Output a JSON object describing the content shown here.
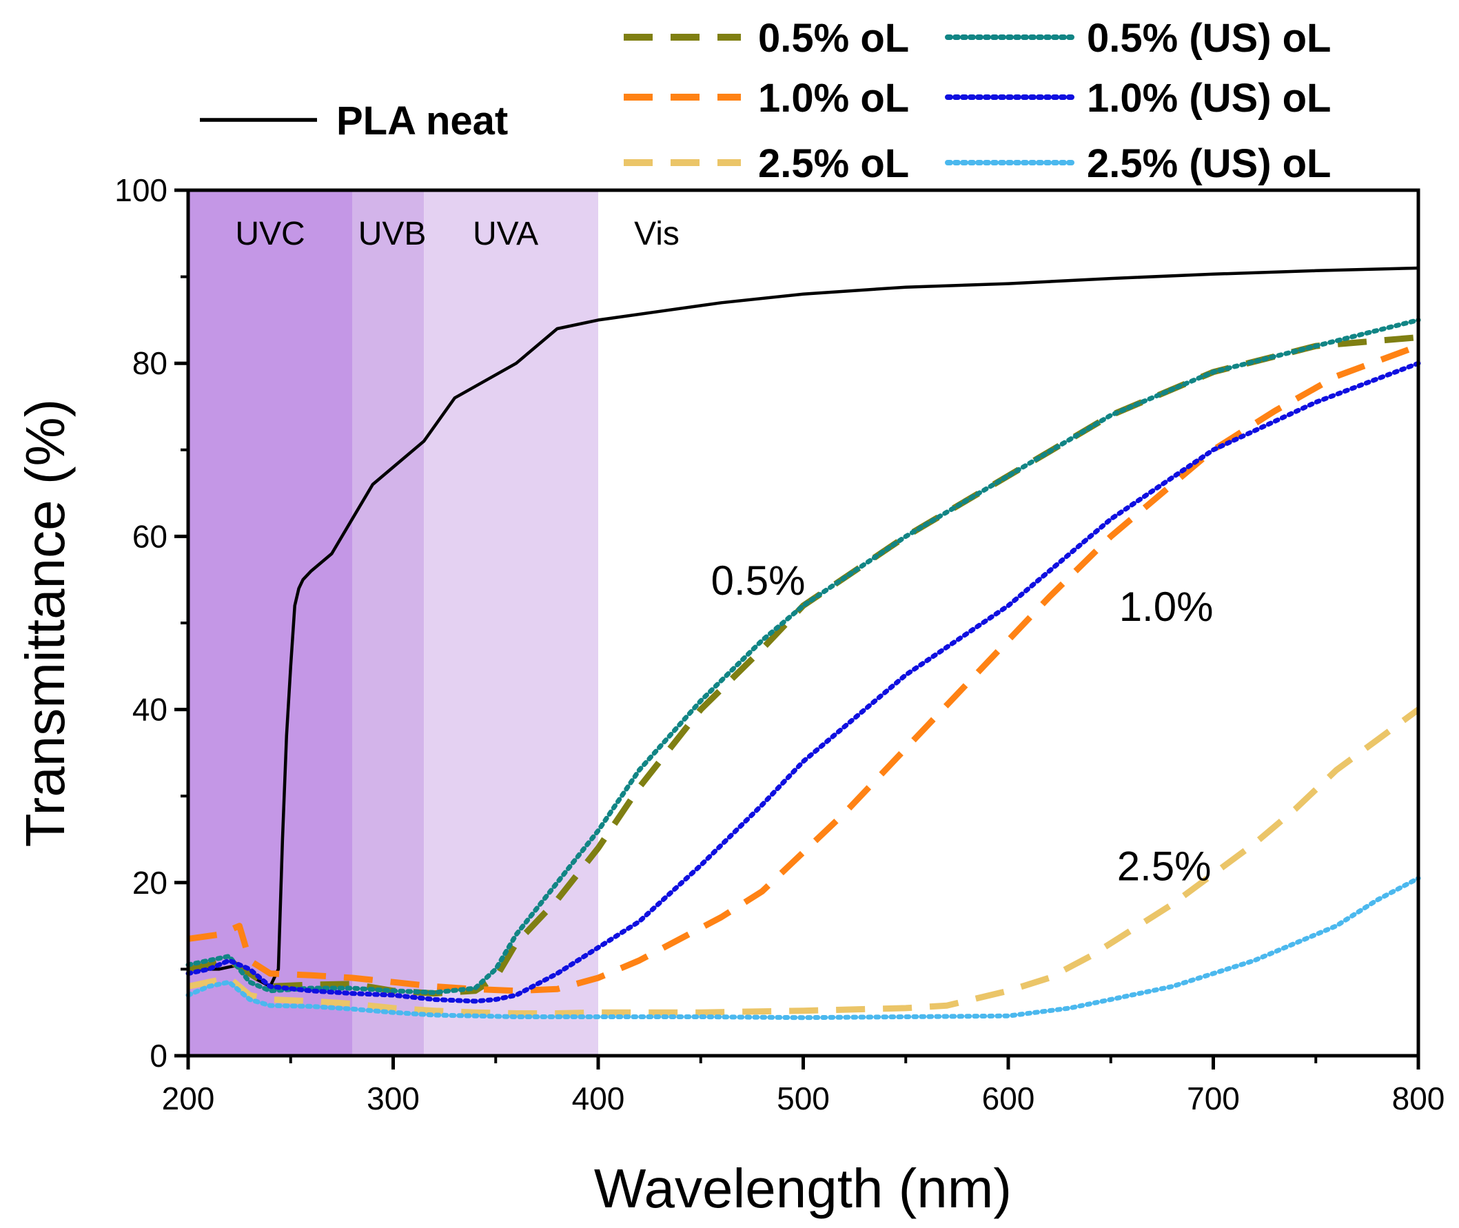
{
  "chart_data": {
    "type": "line",
    "title": "",
    "xlabel": "Wavelength (nm)",
    "ylabel": "Transmittance (%)",
    "xlim": [
      200,
      800
    ],
    "ylim": [
      0,
      100
    ],
    "xticks": [
      200,
      300,
      400,
      500,
      600,
      700,
      800
    ],
    "yticks": [
      0,
      20,
      40,
      60,
      80,
      100
    ],
    "grid": false,
    "legend_position": "top",
    "bands": [
      {
        "label": "UVC",
        "range": [
          200,
          280
        ],
        "color": "#c497e6"
      },
      {
        "label": "UVB",
        "range": [
          280,
          315
        ],
        "color": "#d3b4ea"
      },
      {
        "label": "UVA",
        "range": [
          315,
          400
        ],
        "color": "#e4d1f2"
      },
      {
        "label": "Vis",
        "range": [
          400,
          800
        ],
        "color": "#ffffff"
      }
    ],
    "annotations": [
      {
        "text": "0.5%",
        "x": 478,
        "y": 55
      },
      {
        "text": "1.0%",
        "x": 677,
        "y": 52
      },
      {
        "text": "2.5%",
        "x": 676,
        "y": 22
      }
    ],
    "series": [
      {
        "name": "PLA neat",
        "color": "#000000",
        "style": "solid",
        "x": [
          200,
          215,
          225,
          232,
          240,
          244,
          246,
          248,
          250,
          252,
          254,
          256,
          260,
          270,
          280,
          290,
          300,
          315,
          330,
          345,
          360,
          380,
          400,
          430,
          460,
          500,
          550,
          600,
          650,
          700,
          750,
          800
        ],
        "y": [
          10,
          10,
          10.5,
          9,
          8,
          10,
          25,
          37,
          45,
          52,
          54,
          55,
          56,
          58,
          62,
          66,
          68,
          71,
          76,
          78,
          80,
          84,
          85,
          86,
          87,
          88,
          88.8,
          89.2,
          89.8,
          90.3,
          90.7,
          91
        ]
      },
      {
        "name": "0.5% oL",
        "color": "#7f7f12",
        "style": "dashed",
        "x": [
          200,
          210,
          220,
          230,
          240,
          260,
          280,
          300,
          320,
          340,
          350,
          360,
          380,
          400,
          420,
          450,
          480,
          500,
          550,
          600,
          650,
          700,
          750,
          800
        ],
        "y": [
          10,
          10.5,
          11,
          9.5,
          8,
          8.2,
          8.3,
          7.5,
          7.2,
          7.5,
          9,
          13,
          18,
          24,
          31,
          40,
          47,
          52,
          60,
          67,
          74,
          79,
          82,
          83
        ]
      },
      {
        "name": "1.0% oL",
        "color": "#ff8214",
        "style": "dashed",
        "x": [
          200,
          215,
          225,
          230,
          240,
          260,
          280,
          300,
          320,
          340,
          360,
          380,
          400,
          420,
          440,
          460,
          480,
          500,
          520,
          540,
          560,
          580,
          600,
          620,
          650,
          680,
          700,
          730,
          760,
          800
        ],
        "y": [
          13.5,
          14,
          15,
          11,
          9.5,
          9.3,
          9,
          8.5,
          8,
          7.7,
          7.5,
          7.7,
          9,
          11,
          13.5,
          16,
          19,
          23.5,
          28,
          33,
          38,
          43,
          48,
          53,
          60,
          66,
          70,
          74.5,
          78.5,
          82
        ]
      },
      {
        "name": "2.5% oL",
        "color": "#ebc568",
        "style": "dashed",
        "x": [
          200,
          210,
          220,
          230,
          240,
          260,
          280,
          300,
          320,
          340,
          360,
          380,
          400,
          450,
          500,
          550,
          570,
          600,
          620,
          640,
          660,
          680,
          700,
          720,
          740,
          760,
          780,
          800
        ],
        "y": [
          8,
          8.5,
          9,
          7,
          6.5,
          6.3,
          6,
          5.5,
          5.2,
          5,
          4.9,
          4.9,
          5,
          5,
          5.2,
          5.5,
          5.8,
          7.5,
          9,
          11.5,
          14.5,
          17.5,
          21,
          24.5,
          28.5,
          33,
          36.5,
          40
        ]
      },
      {
        "name": "0.5% (US) oL",
        "color": "#118585",
        "style": "dotted",
        "x": [
          200,
          210,
          220,
          230,
          240,
          260,
          280,
          300,
          320,
          340,
          350,
          360,
          380,
          400,
          420,
          450,
          480,
          500,
          550,
          600,
          650,
          700,
          750,
          800
        ],
        "y": [
          10.5,
          11,
          11.5,
          8.5,
          7.5,
          7.8,
          7.8,
          7.5,
          7.3,
          7.8,
          10,
          14,
          20,
          26,
          33,
          41,
          48,
          52,
          60,
          67,
          74,
          79,
          82,
          85
        ]
      },
      {
        "name": "1.0% (US) oL",
        "color": "#0f0fe0",
        "style": "dotted",
        "x": [
          200,
          210,
          220,
          230,
          240,
          260,
          280,
          300,
          320,
          340,
          350,
          360,
          380,
          400,
          420,
          450,
          480,
          500,
          550,
          600,
          650,
          700,
          750,
          800
        ],
        "y": [
          9.5,
          10,
          11,
          10,
          8,
          7.5,
          7.2,
          7,
          6.5,
          6.3,
          6.5,
          7,
          9.5,
          12.5,
          15.5,
          22,
          29,
          34,
          44,
          52,
          62,
          70,
          75.5,
          80
        ]
      },
      {
        "name": "2.5% (US) oL",
        "color": "#4bb8ee",
        "style": "dotted",
        "x": [
          200,
          210,
          220,
          230,
          240,
          260,
          280,
          300,
          320,
          340,
          360,
          380,
          400,
          450,
          500,
          550,
          600,
          630,
          650,
          680,
          700,
          720,
          740,
          760,
          780,
          800
        ],
        "y": [
          7,
          8,
          8.5,
          6.5,
          5.8,
          5.7,
          5.4,
          5,
          4.7,
          4.6,
          4.5,
          4.5,
          4.5,
          4.5,
          4.4,
          4.5,
          4.6,
          5.5,
          6.5,
          8,
          9.5,
          11,
          13,
          15,
          18,
          20.5
        ]
      }
    ]
  }
}
